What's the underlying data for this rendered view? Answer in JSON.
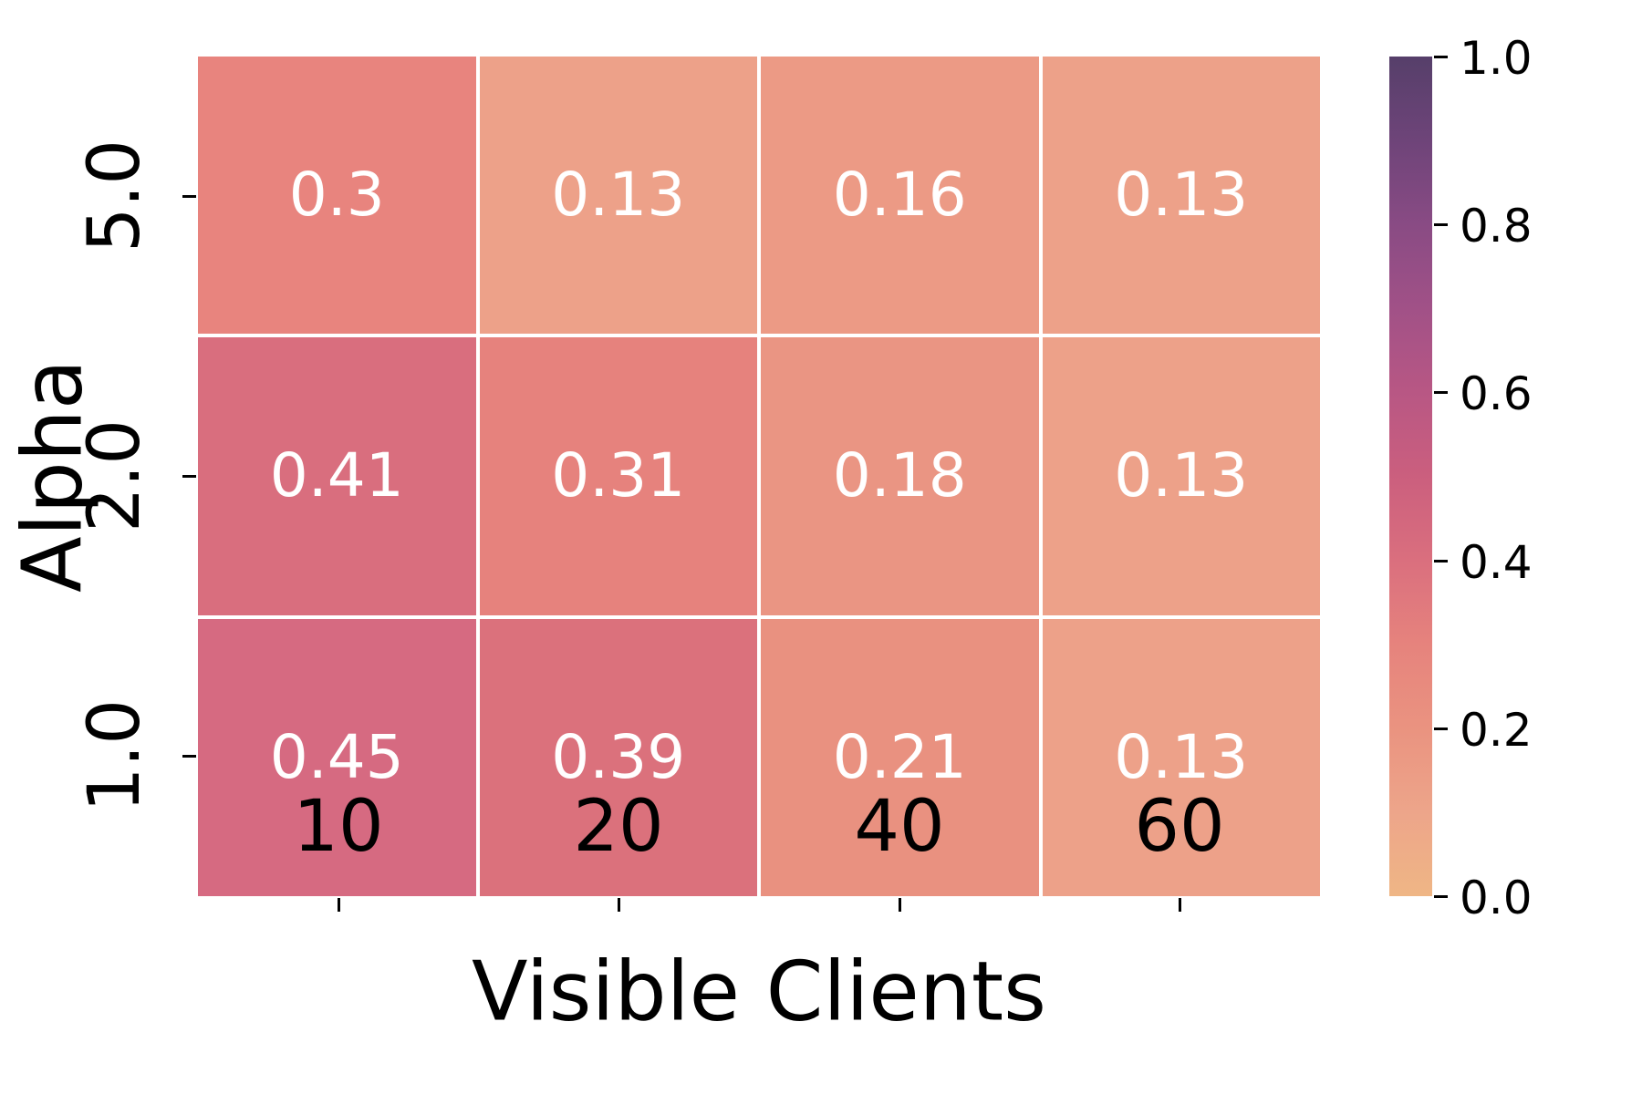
{
  "chart_data": {
    "type": "heatmap",
    "xlabel": "Visible Clients",
    "ylabel": "Alpha",
    "columns": [
      "10",
      "20",
      "40",
      "60"
    ],
    "rows": [
      "5.0",
      "2.0",
      "1.0"
    ],
    "values": [
      [
        0.3,
        0.13,
        0.16,
        0.13
      ],
      [
        0.41,
        0.31,
        0.18,
        0.13
      ],
      [
        0.45,
        0.39,
        0.21,
        0.13
      ]
    ],
    "grid_line_color": "#ffffff",
    "annotation_color": "#ffffff",
    "cells": [
      {
        "row": "5.0",
        "col": "10",
        "value": 0.3,
        "label": "0.3",
        "color": "#e8847e"
      },
      {
        "row": "5.0",
        "col": "20",
        "value": 0.13,
        "label": "0.13",
        "color": "#eda189"
      },
      {
        "row": "5.0",
        "col": "40",
        "value": 0.16,
        "label": "0.16",
        "color": "#ec9a85"
      },
      {
        "row": "5.0",
        "col": "60",
        "value": 0.13,
        "label": "0.13",
        "color": "#eda189"
      },
      {
        "row": "2.0",
        "col": "10",
        "value": 0.41,
        "label": "0.41",
        "color": "#d96e7e"
      },
      {
        "row": "2.0",
        "col": "20",
        "value": 0.31,
        "label": "0.31",
        "color": "#e6827d"
      },
      {
        "row": "2.0",
        "col": "40",
        "value": 0.18,
        "label": "0.18",
        "color": "#ea9583"
      },
      {
        "row": "2.0",
        "col": "60",
        "value": 0.13,
        "label": "0.13",
        "color": "#eda189"
      },
      {
        "row": "1.0",
        "col": "10",
        "value": 0.45,
        "label": "0.45",
        "color": "#d66a81"
      },
      {
        "row": "1.0",
        "col": "20",
        "value": 0.39,
        "label": "0.39",
        "color": "#db717c"
      },
      {
        "row": "1.0",
        "col": "40",
        "value": 0.21,
        "label": "0.21",
        "color": "#e99180"
      },
      {
        "row": "1.0",
        "col": "60",
        "value": 0.13,
        "label": "0.13",
        "color": "#eda189"
      }
    ],
    "colorbar": {
      "min": 0.0,
      "max": 1.0,
      "tick_labels": [
        "1.0",
        "0.8",
        "0.6",
        "0.4",
        "0.2",
        "0.0"
      ],
      "gradient": [
        {
          "pos": 0.0,
          "color": "#efb685"
        },
        {
          "pos": 0.1,
          "color": "#eda58a"
        },
        {
          "pos": 0.2,
          "color": "#ea9380"
        },
        {
          "pos": 0.3,
          "color": "#e6837d"
        },
        {
          "pos": 0.4,
          "color": "#da6f7e"
        },
        {
          "pos": 0.5,
          "color": "#cb5f7e"
        },
        {
          "pos": 0.6,
          "color": "#b85784"
        },
        {
          "pos": 0.7,
          "color": "#a15187"
        },
        {
          "pos": 0.8,
          "color": "#894b84"
        },
        {
          "pos": 0.9,
          "color": "#6e4479"
        },
        {
          "pos": 1.0,
          "color": "#563f6a"
        }
      ]
    }
  }
}
